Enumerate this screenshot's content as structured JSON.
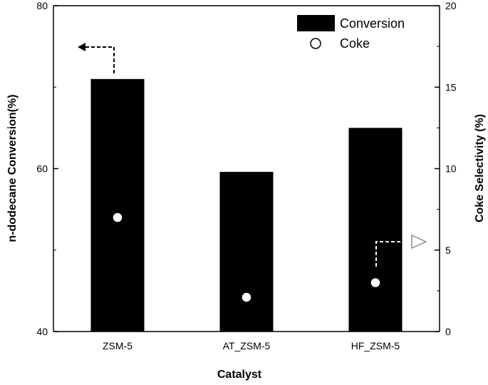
{
  "chart_data": {
    "type": "bar",
    "categories": [
      "ZSM-5",
      "AT_ZSM-5",
      "HF_ZSM-5"
    ],
    "series": [
      {
        "name": "Conversion",
        "axis": "left",
        "marker": "bar",
        "values": [
          71,
          59.6,
          65
        ]
      },
      {
        "name": "Coke",
        "axis": "right",
        "marker": "circle",
        "values": [
          7.0,
          2.1,
          3.0
        ]
      }
    ],
    "xlabel": "Catalyst",
    "ylabel": "n-dodecane Conversion(%)",
    "y2label": "Coke Selectivity (%)",
    "ylim": [
      40,
      80
    ],
    "y2lim": [
      0,
      20
    ],
    "yticks": [
      40,
      60,
      80
    ],
    "y2ticks": [
      0,
      5,
      10,
      15,
      20
    ],
    "grid": false,
    "legend": "top-right",
    "annotations": [
      {
        "kind": "dashed-arrow",
        "points_to": "left-axis",
        "from_category": "ZSM-5"
      },
      {
        "kind": "dashed-arrow",
        "points_to": "right-axis",
        "from_category": "HF_ZSM-5"
      }
    ],
    "colors": {
      "bar": "#000000",
      "marker_fill": "#ffffff",
      "axes": "#000000"
    }
  }
}
